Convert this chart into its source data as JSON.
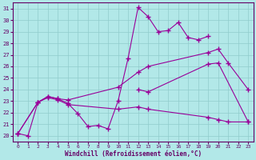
{
  "xlabel": "Windchill (Refroidissement éolien,°C)",
  "bg_color": "#b2e8e8",
  "line_color": "#990099",
  "xlim": [
    -0.5,
    23.5
  ],
  "ylim": [
    19.5,
    31.5
  ],
  "xticks": [
    0,
    1,
    2,
    3,
    4,
    5,
    6,
    7,
    8,
    9,
    10,
    11,
    12,
    13,
    14,
    15,
    16,
    17,
    18,
    19,
    20,
    21,
    22,
    23
  ],
  "yticks": [
    20,
    21,
    22,
    23,
    24,
    25,
    26,
    27,
    28,
    29,
    30,
    31
  ],
  "lines": [
    {
      "x": [
        0,
        1,
        2,
        3,
        4,
        5,
        6,
        7,
        8,
        9,
        10,
        11,
        12,
        13,
        14,
        15,
        16,
        17,
        18,
        19
      ],
      "y": [
        20.2,
        20.0,
        22.9,
        23.4,
        23.2,
        22.8,
        21.9,
        20.8,
        20.9,
        20.6,
        23.0,
        26.7,
        31.1,
        30.3,
        29.0,
        29.1,
        29.8,
        28.5,
        28.3,
        28.6
      ]
    },
    {
      "x": [
        0,
        2,
        3,
        4,
        5,
        10,
        12,
        13,
        19,
        20,
        21,
        23
      ],
      "y": [
        20.2,
        22.9,
        23.4,
        23.2,
        23.1,
        24.2,
        25.5,
        26.0,
        27.2,
        27.5,
        26.3,
        24.0
      ]
    },
    {
      "x": [
        0,
        2,
        3,
        4,
        5,
        10,
        12,
        13,
        19,
        20,
        21,
        23
      ],
      "y": [
        20.2,
        22.9,
        23.3,
        23.1,
        22.7,
        22.3,
        22.5,
        22.3,
        21.6,
        21.4,
        21.2,
        21.2
      ]
    },
    {
      "x": [
        12,
        13,
        19,
        20,
        23
      ],
      "y": [
        24.0,
        23.8,
        26.2,
        26.3,
        21.2
      ]
    }
  ]
}
